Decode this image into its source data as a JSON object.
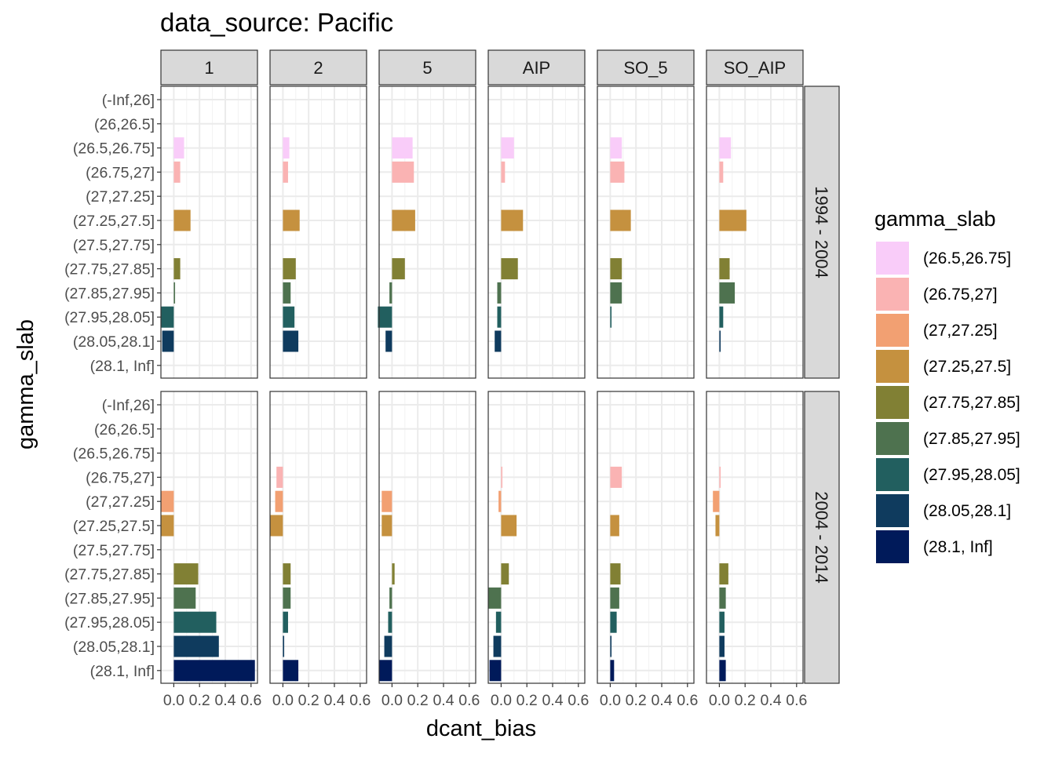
{
  "chart_data": {
    "type": "bar",
    "orientation": "horizontal",
    "facet_type": "grid",
    "title": "data_source: Pacific",
    "xlabel": "dcant_bias",
    "ylabel": "gamma_slab",
    "legend_title": "gamma_slab",
    "legend_position": "right",
    "grid": true,
    "xlim": [
      -0.1,
      0.65
    ],
    "x_ticks": [
      0.0,
      0.2,
      0.4,
      0.6
    ],
    "x_tick_labels": [
      "0.0",
      "0.2",
      "0.4",
      "0.6"
    ],
    "col_facets": [
      "1",
      "2",
      "5",
      "AIP",
      "SO_5",
      "SO_AIP"
    ],
    "row_facets": [
      "1994 - 2004",
      "2004 - 2014"
    ],
    "categories": [
      "(-Inf,26]",
      "(26,26.5]",
      "(26.5,26.75]",
      "(26.75,27]",
      "(27,27.25]",
      "(27.25,27.5]",
      "(27.5,27.75]",
      "(27.75,27.85]",
      "(27.85,27.95]",
      "(27.95,28.05]",
      "(28.05,28.1]",
      "(28.1, Inf]"
    ],
    "legend": [
      {
        "label": "(26.5,26.75]",
        "color": "#F9CCF9"
      },
      {
        "label": "(26.75,27]",
        "color": "#FAB3B3"
      },
      {
        "label": "(27,27.25]",
        "color": "#F2A072"
      },
      {
        "label": "(27.25,27.5]",
        "color": "#C5913F"
      },
      {
        "label": "(27.75,27.85]",
        "color": "#818034"
      },
      {
        "label": "(27.85,27.95]",
        "color": "#4E724F"
      },
      {
        "label": "(27.95,28.05]",
        "color": "#225F5F"
      },
      {
        "label": "(28.05,28.1]",
        "color": "#0F3B5E"
      },
      {
        "label": "(28.1, Inf]",
        "color": "#001A5A"
      }
    ],
    "panels": [
      {
        "row": "1994 - 2004",
        "col": "1",
        "values": {
          "(26.5,26.75]": 0.08,
          "(26.75,27]": 0.05,
          "(27.25,27.5]": 0.13,
          "(27.75,27.85]": 0.05,
          "(27.85,27.95]": 0.01,
          "(27.95,28.05]": -0.1,
          "(28.05,28.1]": -0.09
        }
      },
      {
        "row": "1994 - 2004",
        "col": "2",
        "values": {
          "(26.5,26.75]": 0.05,
          "(26.75,27]": 0.04,
          "(27.25,27.5]": 0.13,
          "(27.75,27.85]": 0.1,
          "(27.85,27.95]": 0.06,
          "(27.95,28.05]": 0.09,
          "(28.05,28.1]": 0.12
        }
      },
      {
        "row": "1994 - 2004",
        "col": "5",
        "values": {
          "(26.5,26.75]": 0.16,
          "(26.75,27]": 0.17,
          "(27.25,27.5]": 0.18,
          "(27.75,27.85]": 0.1,
          "(27.85,27.95]": -0.02,
          "(27.95,28.05]": -0.11,
          "(28.05,28.1]": -0.05
        }
      },
      {
        "row": "1994 - 2004",
        "col": "AIP",
        "values": {
          "(26.5,26.75]": 0.1,
          "(26.75,27]": 0.03,
          "(27.25,27.5]": 0.17,
          "(27.75,27.85]": 0.13,
          "(27.85,27.95]": -0.03,
          "(27.95,28.05]": -0.03,
          "(28.05,28.1]": -0.05
        }
      },
      {
        "row": "1994 - 2004",
        "col": "SO_5",
        "values": {
          "(26.5,26.75]": 0.09,
          "(26.75,27]": 0.11,
          "(27.25,27.5]": 0.16,
          "(27.75,27.85]": 0.09,
          "(27.85,27.95]": 0.09,
          "(27.95,28.05]": 0.01
        }
      },
      {
        "row": "1994 - 2004",
        "col": "SO_AIP",
        "values": {
          "(26.5,26.75]": 0.09,
          "(26.75,27]": 0.03,
          "(27.25,27.5]": 0.21,
          "(27.75,27.85]": 0.08,
          "(27.85,27.95]": 0.12,
          "(27.95,28.05]": 0.03,
          "(28.05,28.1]": 0.01
        }
      },
      {
        "row": "2004 - 2014",
        "col": "1",
        "values": {
          "(27,27.25]": -0.1,
          "(27.25,27.5]": -0.1,
          "(27.75,27.85]": 0.19,
          "(27.85,27.95]": 0.17,
          "(27.95,28.05]": 0.33,
          "(28.05,28.1]": 0.35,
          "(28.1, Inf]": 0.63
        }
      },
      {
        "row": "2004 - 2014",
        "col": "2",
        "values": {
          "(26.75,27]": -0.05,
          "(27,27.25]": -0.06,
          "(27.25,27.5]": -0.1,
          "(27.75,27.85]": 0.06,
          "(27.85,27.95]": 0.06,
          "(27.95,28.05]": 0.04,
          "(28.05,28.1]": 0.01,
          "(28.1, Inf]": 0.12
        }
      },
      {
        "row": "2004 - 2014",
        "col": "5",
        "values": {
          "(27,27.25]": -0.08,
          "(27.25,27.5]": -0.08,
          "(27.75,27.85]": 0.02,
          "(27.85,27.95]": -0.02,
          "(27.95,28.05]": -0.03,
          "(28.05,28.1]": -0.06,
          "(28.1, Inf]": -0.1
        }
      },
      {
        "row": "2004 - 2014",
        "col": "AIP",
        "values": {
          "(26.75,27]": 0.01,
          "(27,27.25]": -0.02,
          "(27.25,27.5]": 0.12,
          "(27.75,27.85]": 0.06,
          "(27.85,27.95]": -0.1,
          "(27.95,28.05]": -0.04,
          "(28.05,28.1]": -0.06,
          "(28.1, Inf]": -0.09
        }
      },
      {
        "row": "2004 - 2014",
        "col": "SO_5",
        "values": {
          "(26.75,27]": 0.09,
          "(27.25,27.5]": 0.07,
          "(27.75,27.85]": 0.08,
          "(27.85,27.95]": 0.07,
          "(27.95,28.05]": 0.05,
          "(28.05,28.1]": 0.01,
          "(28.1, Inf]": 0.03
        }
      },
      {
        "row": "2004 - 2014",
        "col": "SO_AIP",
        "values": {
          "(26.75,27]": 0.01,
          "(27,27.25]": -0.05,
          "(27.25,27.5]": -0.03,
          "(27.75,27.85]": 0.07,
          "(27.85,27.95]": 0.05,
          "(27.95,28.05]": 0.04,
          "(28.05,28.1]": 0.04,
          "(28.1, Inf]": 0.05
        }
      }
    ]
  }
}
